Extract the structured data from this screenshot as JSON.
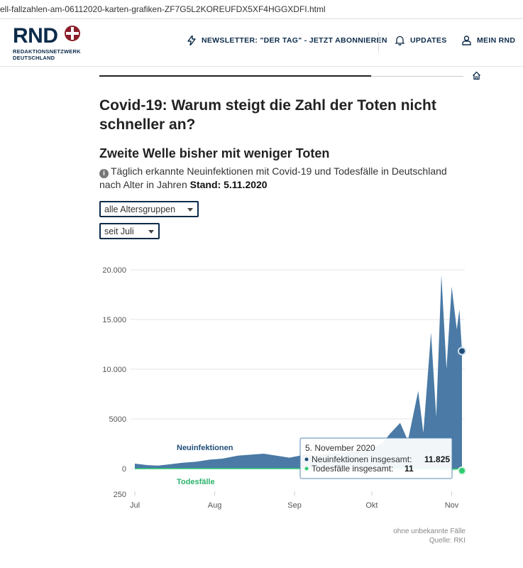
{
  "browser": {
    "url": "ell-fallzahlen-am-06112020-karten-grafiken-ZF7G5L2KOREUFDX5XF4HGGXDFI.html"
  },
  "header": {
    "logo_text": "RND",
    "logo_sub_1": "REDAKTIONSNETZWERK",
    "logo_sub_2": "DEUTSCHLAND",
    "newsletter": "NEWSLETTER: \"DER TAG\" - JETZT ABONNIEREN",
    "updates": "UPDATES",
    "mein_rnd": "MEIN RND"
  },
  "article": {
    "title": "Covid-19: Warum steigt die Zahl der Toten nicht schneller an?",
    "chart_title": "Zweite Welle bisher mit weniger Toten",
    "chart_subtitle": "Täglich erkannte Neuinfektionen mit Covid-19 und Todesfälle in Deutschland nach Alter in Jahren",
    "stand_label": "Stand: 5.11.2020",
    "select_age": "alle Altersgruppen",
    "select_period": "seit Juli",
    "footnote": "ohne unbekannte Fälle",
    "source": "Quelle: RKI"
  },
  "chart_data": {
    "type": "area",
    "title": "Zweite Welle bisher mit weniger Toten",
    "x_tick_labels": [
      "Jul",
      "Aug",
      "Sep",
      "Okt",
      "Nov"
    ],
    "y_tick_labels": [
      "20.000",
      "15.000",
      "10.000",
      "5000",
      "0",
      "250"
    ],
    "y_ticks": [
      20000,
      15000,
      10000,
      5000,
      0
    ],
    "ylim": [
      -2500,
      20000
    ],
    "x_start": "2020-07-01",
    "x_end": "2020-11-05",
    "grid": true,
    "colors": {
      "infections": "#4a7aa5",
      "deaths": "#2ecc71",
      "death_fill": "#b9e6c9"
    },
    "series": [
      {
        "name": "Neuinfektionen",
        "x": [
          "2020-07-01",
          "2020-07-06",
          "2020-07-10",
          "2020-07-15",
          "2020-07-20",
          "2020-07-25",
          "2020-07-30",
          "2020-08-04",
          "2020-08-10",
          "2020-08-15",
          "2020-08-20",
          "2020-08-25",
          "2020-08-30",
          "2020-09-05",
          "2020-09-10",
          "2020-09-15",
          "2020-09-20",
          "2020-09-25",
          "2020-09-30",
          "2020-10-05",
          "2020-10-08",
          "2020-10-12",
          "2020-10-15",
          "2020-10-19",
          "2020-10-21",
          "2020-10-24",
          "2020-10-26",
          "2020-10-28",
          "2020-10-30",
          "2020-11-01",
          "2020-11-03",
          "2020-11-04",
          "2020-11-05"
        ],
        "values": [
          500,
          350,
          300,
          450,
          600,
          700,
          900,
          1000,
          1300,
          1400,
          1500,
          1300,
          1100,
          1400,
          1300,
          1500,
          1600,
          1800,
          2000,
          2500,
          3500,
          4600,
          2800,
          7800,
          3600,
          13700,
          5200,
          19500,
          10000,
          18300,
          14000,
          16000,
          11825
        ]
      },
      {
        "name": "Todesfälle",
        "x": [
          "2020-07-01",
          "2020-08-01",
          "2020-09-01",
          "2020-10-01",
          "2020-10-15",
          "2020-10-25",
          "2020-11-01",
          "2020-11-05"
        ],
        "values": [
          5,
          3,
          3,
          10,
          20,
          40,
          60,
          11
        ]
      }
    ],
    "labels": {
      "infections": "Neuinfektionen",
      "deaths": "Todesfälle"
    },
    "tooltip": {
      "date": "5. November 2020",
      "infections_label": "Neuinfektionen insgesamt:",
      "infections_value": "11.825",
      "deaths_label": "Todesfälle insgesamt:",
      "deaths_value": "11"
    }
  }
}
